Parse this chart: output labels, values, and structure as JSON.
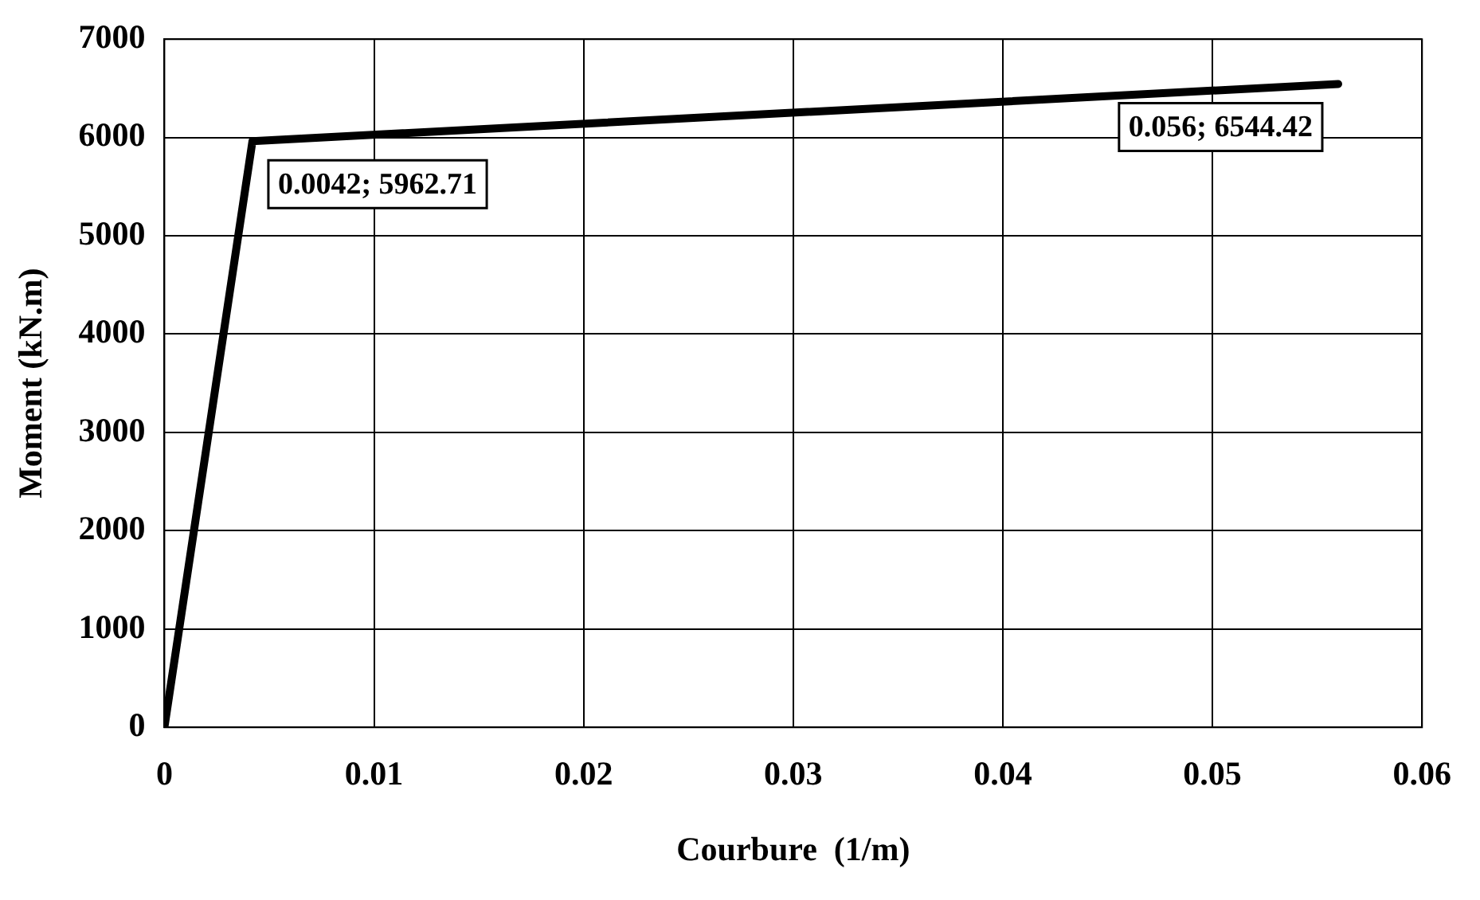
{
  "chart_data": {
    "type": "line",
    "xlabel": "Courbure  (1/m)",
    "ylabel": "Moment (kN.m)",
    "x": [
      0,
      0.0042,
      0.056
    ],
    "series": [
      {
        "color": "#000000",
        "values": [
          0,
          5962.71,
          6544.42
        ]
      }
    ],
    "xlim": [
      0,
      0.06
    ],
    "xticks": [
      0,
      0.01,
      0.02,
      0.03,
      0.04,
      0.05,
      0.06
    ],
    "ylim": [
      0,
      7000
    ],
    "yticks": [
      0,
      1000,
      2000,
      3000,
      4000,
      5000,
      6000,
      7000
    ],
    "grid": true,
    "legend": false,
    "marker": "none",
    "line_style": "solid",
    "annotations": [
      {
        "text": "0.0042; 5962.71",
        "x": 0.0042,
        "y": 5962.71
      },
      {
        "text": "0.056; 6544.42",
        "x": 0.056,
        "y": 6544.42
      }
    ]
  }
}
